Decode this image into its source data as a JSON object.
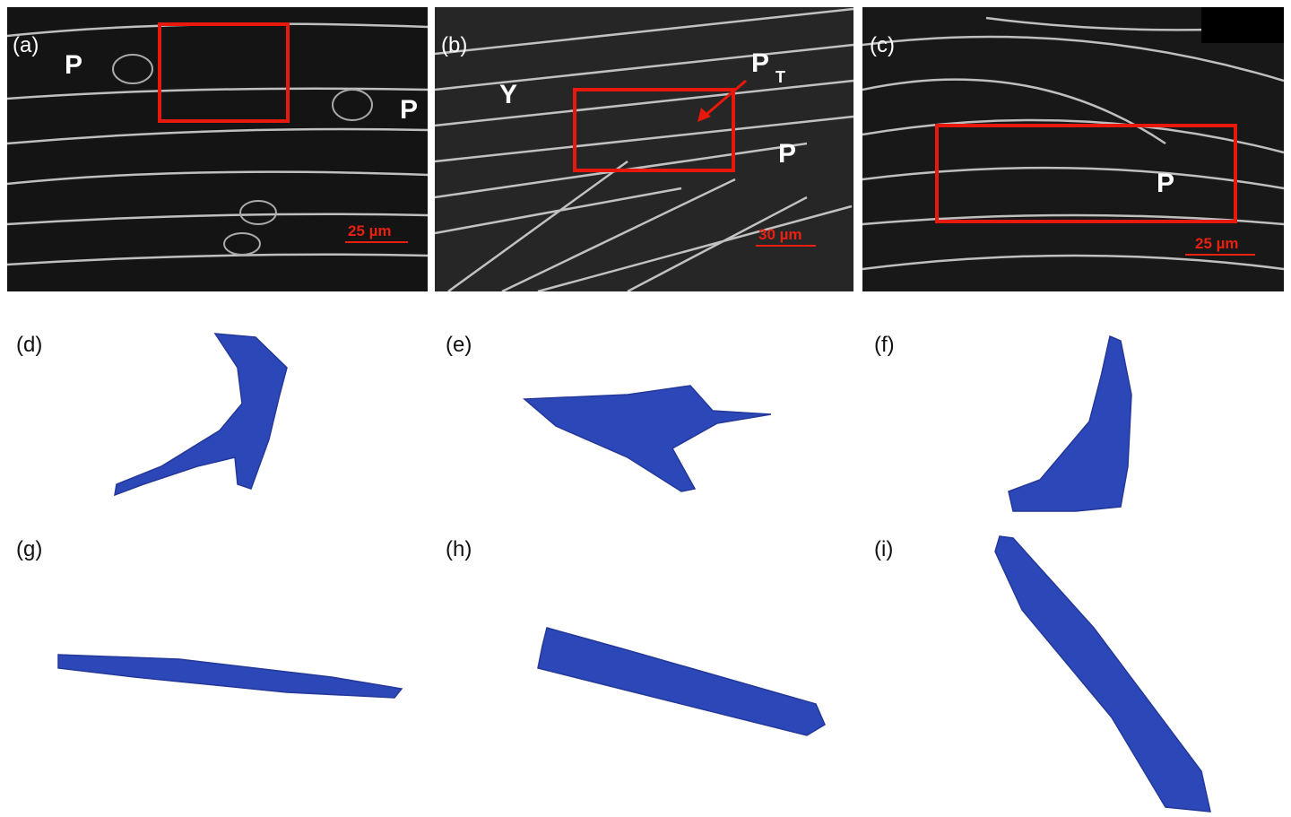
{
  "panels": [
    {
      "label": "(a)",
      "annotations": [
        "P",
        "P"
      ],
      "scale_bar": "25 µm"
    },
    {
      "label": "(b)",
      "annotations": [
        "Y",
        "P",
        "T",
        "P"
      ],
      "scale_bar": "30 µm"
    },
    {
      "label": "(c)",
      "annotations": [
        "P"
      ],
      "scale_bar": "25 µm"
    },
    {
      "label": "(d)"
    },
    {
      "label": "(e)"
    },
    {
      "label": "(f)"
    },
    {
      "label": "(g)"
    },
    {
      "label": "(h)"
    },
    {
      "label": "(i)"
    }
  ]
}
